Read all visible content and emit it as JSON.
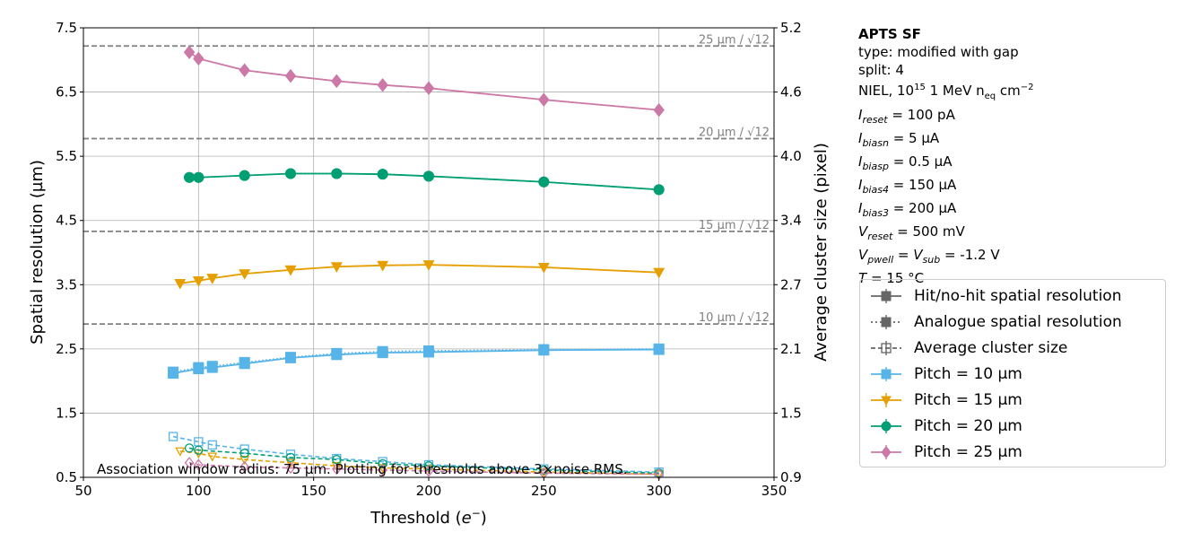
{
  "chart_data": {
    "type": "line",
    "xlabel_pre": "Threshold (",
    "xlabel_italic": "e",
    "xlabel_sup": "−",
    "xlabel_post": ")",
    "ylabel_left": "Spatial resolution (µm)",
    "ylabel_right": "Average cluster size (pixel)",
    "xlim": [
      50,
      350
    ],
    "ylim_left": [
      0.5,
      7.5
    ],
    "ylim_right": [
      0.9,
      5.2
    ],
    "x_ticks": [
      50,
      100,
      150,
      200,
      250,
      300,
      350
    ],
    "y_left_ticks": [
      "0.5",
      "1.5",
      "2.5",
      "3.5",
      "4.5",
      "5.5",
      "6.5",
      "7.5"
    ],
    "y_right_ticks": [
      "0.9",
      "1.5",
      "2.1",
      "2.7",
      "3.4",
      "4.0",
      "4.6",
      "5.2"
    ],
    "ref_lines": [
      {
        "label": "25 µm / √12",
        "value": 7.217
      },
      {
        "label": "20 µm / √12",
        "value": 5.774
      },
      {
        "label": "15 µm / √12",
        "value": 4.33
      },
      {
        "label": "10 µm / √12",
        "value": 2.887
      }
    ],
    "note": "Association window radius: 75 µm. Plotting for thresholds above 3×noise RMS.",
    "series": [
      {
        "name": "Pitch = 10 µm",
        "color": "#56b4e9",
        "marker": "square",
        "x": [
          89,
          100,
          106,
          120,
          140,
          160,
          180,
          200,
          250,
          300
        ],
        "hit": [
          2.12,
          2.19,
          2.21,
          2.27,
          2.36,
          2.41,
          2.44,
          2.45,
          2.48,
          2.49
        ],
        "ana": [
          2.14,
          2.21,
          2.23,
          2.29,
          2.37,
          2.43,
          2.46,
          2.47,
          2.49,
          2.5
        ],
        "clus": [
          1.29,
          1.24,
          1.21,
          1.17,
          1.12,
          1.08,
          1.05,
          1.02,
          0.98,
          0.95
        ]
      },
      {
        "name": "Pitch = 15 µm",
        "color": "#e69f00",
        "marker": "triangle",
        "x": [
          92,
          100,
          106,
          120,
          140,
          160,
          180,
          200,
          250,
          300
        ],
        "hit": [
          3.52,
          3.56,
          3.6,
          3.67,
          3.73,
          3.78,
          3.8,
          3.81,
          3.77,
          3.69
        ],
        "ana": [
          3.52,
          3.56,
          3.6,
          3.67,
          3.73,
          3.78,
          3.8,
          3.81,
          3.77,
          3.69
        ],
        "clus": [
          1.15,
          1.13,
          1.1,
          1.07,
          1.04,
          1.01,
          0.99,
          0.98,
          0.95,
          0.93
        ]
      },
      {
        "name": "Pitch = 20 µm",
        "color": "#009e73",
        "marker": "circle",
        "x": [
          96,
          100,
          120,
          140,
          160,
          180,
          200,
          250,
          300
        ],
        "hit": [
          5.17,
          5.17,
          5.2,
          5.23,
          5.23,
          5.22,
          5.19,
          5.1,
          4.98
        ],
        "ana": [
          5.17,
          5.17,
          5.2,
          5.23,
          5.23,
          5.22,
          5.19,
          5.1,
          4.98
        ],
        "clus": [
          1.18,
          1.16,
          1.13,
          1.09,
          1.07,
          1.03,
          1.01,
          0.97,
          0.94
        ]
      },
      {
        "name": "Pitch = 25 µm",
        "color": "#cc79a7",
        "marker": "diamond",
        "x": [
          96,
          100,
          120,
          140,
          160,
          180,
          200,
          250,
          300
        ],
        "hit": [
          7.12,
          7.02,
          6.84,
          6.75,
          6.67,
          6.61,
          6.56,
          6.38,
          6.22
        ],
        "ana": [
          7.12,
          7.02,
          6.84,
          6.75,
          6.67,
          6.61,
          6.56,
          6.38,
          6.22
        ],
        "clus": [
          1.04,
          1.02,
          1.0,
          0.99,
          0.98,
          0.97,
          0.96,
          0.94,
          0.93
        ]
      }
    ]
  },
  "info": {
    "title": "APTS SF",
    "type": "type: modified with gap",
    "split": "split:  4",
    "niel_pre": "NIEL, 10",
    "niel_exp": "15",
    "niel_mid": " 1 MeV n",
    "niel_sub": "eq",
    "niel_post": " cm",
    "niel_exp2": "−2",
    "params": [
      {
        "sym": "I",
        "sub": "reset",
        "val": " = 100 pA"
      },
      {
        "sym": "I",
        "sub": "biasn",
        "val": " = 5 µA"
      },
      {
        "sym": "I",
        "sub": "biasp",
        "val": " = 0.5 µA"
      },
      {
        "sym": "I",
        "sub": "bias4",
        "val": " = 150 µA"
      },
      {
        "sym": "I",
        "sub": "bias3",
        "val": " = 200 µA"
      },
      {
        "sym": "V",
        "sub": "reset",
        "val": " = 500 mV"
      }
    ],
    "vp_sym": "V",
    "vp_sub": "pwell",
    "vp_eq": " = ",
    "vs_sym": "V",
    "vs_sub": "sub",
    "vs_val": " = -1.2 V",
    "t_sym": "T",
    "t_val": " = 15 °C"
  },
  "legend": [
    {
      "label": "Hit/no-hit spatial resolution",
      "color": "#666666",
      "style": "solid",
      "marker": "square-filled"
    },
    {
      "label": "Analogue spatial resolution",
      "color": "#666666",
      "style": "dotted",
      "marker": "square-filled"
    },
    {
      "label": "Average cluster size",
      "color": "#666666",
      "style": "dashed",
      "marker": "square-open"
    },
    {
      "label": "Pitch = 10 µm",
      "color": "#56b4e9",
      "style": "solid",
      "marker": "square"
    },
    {
      "label": "Pitch = 15 µm",
      "color": "#e69f00",
      "style": "solid",
      "marker": "triangle"
    },
    {
      "label": "Pitch = 20 µm",
      "color": "#009e73",
      "style": "solid",
      "marker": "circle"
    },
    {
      "label": "Pitch = 25 µm",
      "color": "#cc79a7",
      "style": "solid",
      "marker": "diamond"
    }
  ]
}
